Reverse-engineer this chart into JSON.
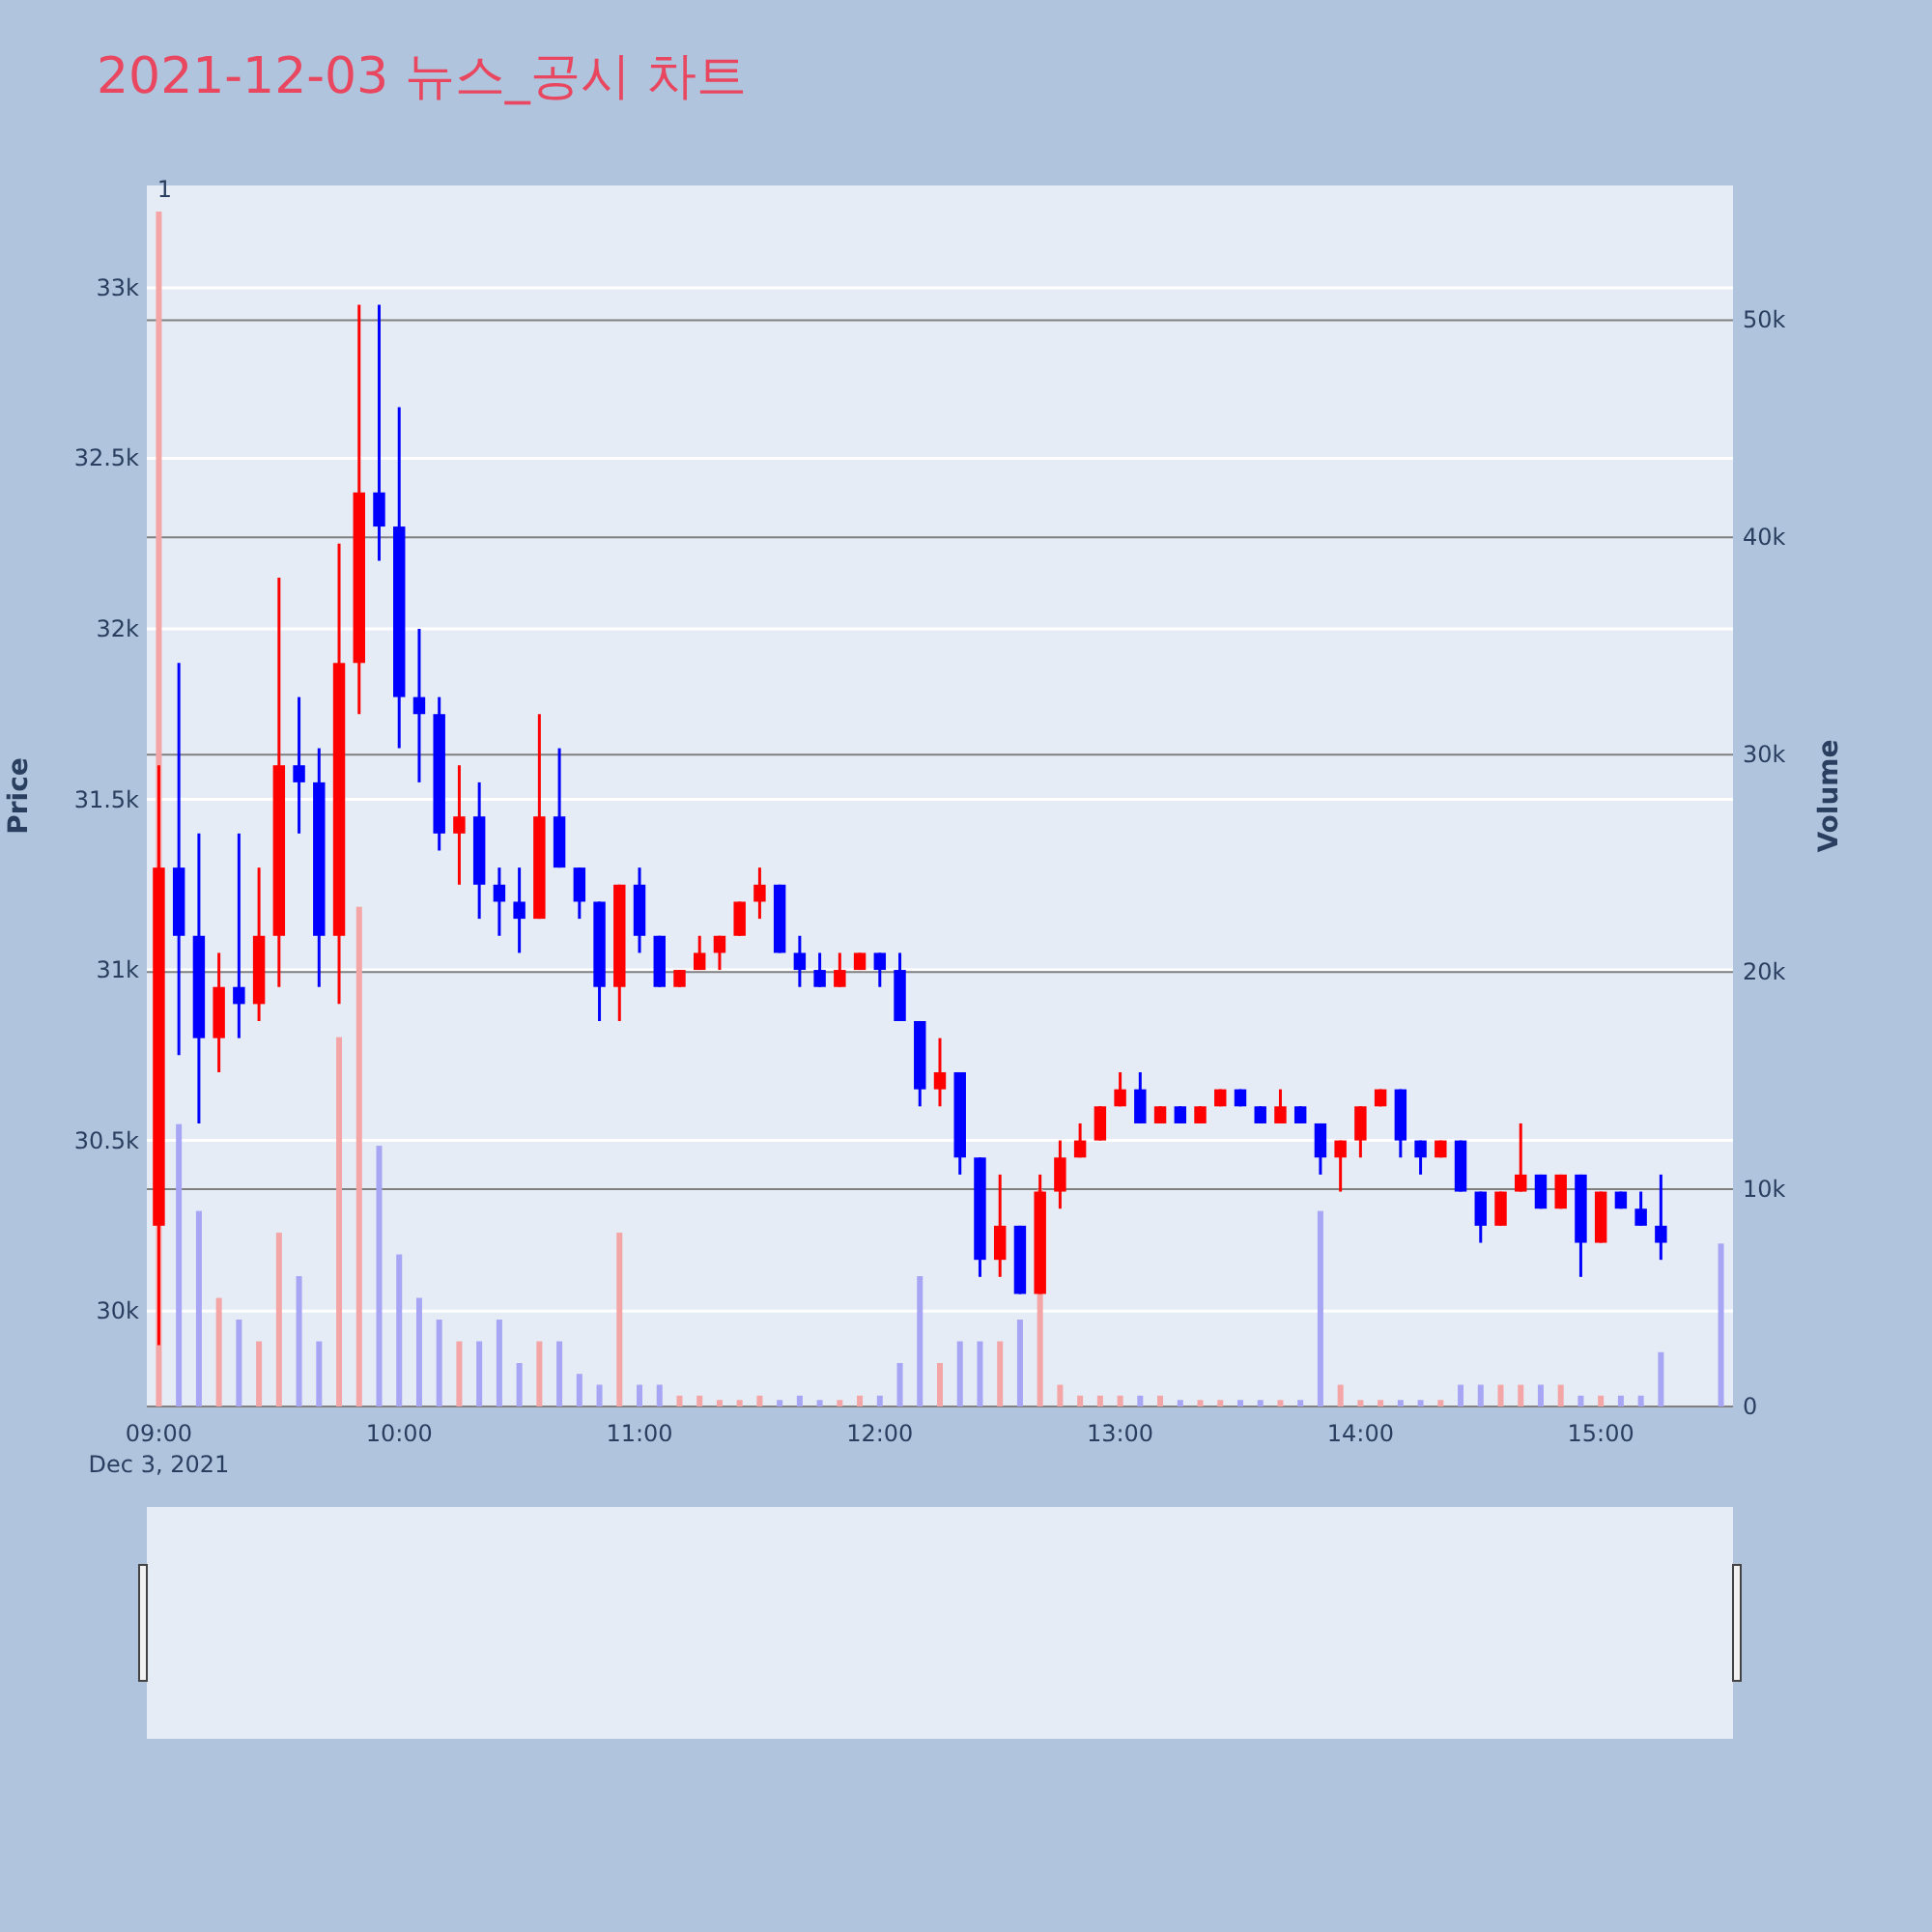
{
  "chart_data": {
    "type": "candlestick",
    "title": "2021-12-03 뉴스_공시 차트",
    "ylabel": "Price",
    "y2label": "Volume",
    "xlim": [
      "2021-12-03T08:57",
      "2021-12-03T15:33"
    ],
    "xticks": [
      {
        "value": "2021-12-03T09:00",
        "label": "09:00"
      },
      {
        "value": "2021-12-03T10:00",
        "label": "10:00"
      },
      {
        "value": "2021-12-03T11:00",
        "label": "11:00"
      },
      {
        "value": "2021-12-03T12:00",
        "label": "12:00"
      },
      {
        "value": "2021-12-03T13:00",
        "label": "13:00"
      },
      {
        "value": "2021-12-03T14:00",
        "label": "14:00"
      },
      {
        "value": "2021-12-03T15:00",
        "label": "15:00"
      }
    ],
    "ylim": [
      29720,
      33300
    ],
    "yticks": [
      {
        "value": 30000,
        "label": "30k"
      },
      {
        "value": 30500,
        "label": "30.5k"
      },
      {
        "value": 31000,
        "label": "31k"
      },
      {
        "value": 31500,
        "label": "31.5k"
      },
      {
        "value": 32000,
        "label": "32k"
      },
      {
        "value": 32500,
        "label": "32.5k"
      },
      {
        "value": 33000,
        "label": "33k"
      }
    ],
    "y2lim": [
      0,
      56200
    ],
    "y2ticks": [
      0,
      {
        "value": 10000,
        "label": "10k"
      },
      {
        "value": 20000,
        "label": "20k"
      },
      {
        "value": 30000,
        "label": "30k"
      },
      {
        "value": 40000,
        "label": "40k"
      },
      {
        "value": 50000,
        "label": "50k"
      }
    ],
    "grid": true,
    "annotations": [
      "1",
      "Dec 3, 2021"
    ],
    "series": [
      {
        "type": "bar",
        "axis": "y2",
        "x": [
          "2021-12-03T09:00",
          "2021-12-03T09:05",
          "2021-12-03T09:10",
          "2021-12-03T09:15",
          "2021-12-03T09:20",
          "2021-12-03T09:25",
          "2021-12-03T09:30",
          "2021-12-03T09:35",
          "2021-12-03T09:40",
          "2021-12-03T09:45",
          "2021-12-03T09:50",
          "2021-12-03T09:55",
          "2021-12-03T10:00",
          "2021-12-03T10:05",
          "2021-12-03T10:10",
          "2021-12-03T10:15",
          "2021-12-03T10:20",
          "2021-12-03T10:25",
          "2021-12-03T10:30",
          "2021-12-03T10:35",
          "2021-12-03T10:40",
          "2021-12-03T10:45",
          "2021-12-03T10:50",
          "2021-12-03T10:55",
          "2021-12-03T11:00",
          "2021-12-03T11:05",
          "2021-12-03T11:10",
          "2021-12-03T11:15",
          "2021-12-03T11:20",
          "2021-12-03T11:25",
          "2021-12-03T11:30",
          "2021-12-03T11:35",
          "2021-12-03T11:40",
          "2021-12-03T11:45",
          "2021-12-03T11:50",
          "2021-12-03T11:55",
          "2021-12-03T12:00",
          "2021-12-03T12:05",
          "2021-12-03T12:10",
          "2021-12-03T12:15",
          "2021-12-03T12:20",
          "2021-12-03T12:25",
          "2021-12-03T12:30",
          "2021-12-03T12:35",
          "2021-12-03T12:40",
          "2021-12-03T12:45",
          "2021-12-03T12:50",
          "2021-12-03T12:55",
          "2021-12-03T13:00",
          "2021-12-03T13:05",
          "2021-12-03T13:10",
          "2021-12-03T13:15",
          "2021-12-03T13:20",
          "2021-12-03T13:25",
          "2021-12-03T13:30",
          "2021-12-03T13:35",
          "2021-12-03T13:40",
          "2021-12-03T13:45",
          "2021-12-03T13:50",
          "2021-12-03T13:55",
          "2021-12-03T14:00",
          "2021-12-03T14:05",
          "2021-12-03T14:10",
          "2021-12-03T14:15",
          "2021-12-03T14:20",
          "2021-12-03T14:25",
          "2021-12-03T14:30",
          "2021-12-03T14:35",
          "2021-12-03T14:40",
          "2021-12-03T14:45",
          "2021-12-03T14:50",
          "2021-12-03T14:55",
          "2021-12-03T15:00",
          "2021-12-03T15:05",
          "2021-12-03T15:10",
          "2021-12-03T15:15",
          "2021-12-03T15:30"
        ],
        "values": [
          55000,
          13000,
          9000,
          5000,
          4000,
          3000,
          8000,
          6000,
          3000,
          17000,
          23000,
          12000,
          7000,
          5000,
          4000,
          3000,
          3000,
          4000,
          2000,
          3000,
          3000,
          1500,
          1000,
          8000,
          1000,
          1000,
          500,
          500,
          300,
          300,
          500,
          300,
          500,
          300,
          300,
          500,
          500,
          2000,
          6000,
          2000,
          3000,
          3000,
          3000,
          4000,
          10000,
          1000,
          500,
          500,
          500,
          500,
          500,
          300,
          300,
          300,
          300,
          300,
          300,
          300,
          9000,
          1000,
          300,
          300,
          300,
          300,
          300,
          1000,
          1000,
          1000,
          1000,
          1000,
          1000,
          500,
          500,
          500,
          500,
          2500,
          7500
        ],
        "colors": [
          "#f4a6a6",
          "#a6a6f4",
          "#a6a6f4",
          "#f4a6a6",
          "#a6a6f4",
          "#f4a6a6",
          "#f4a6a6",
          "#a6a6f4",
          "#a6a6f4",
          "#f4a6a6",
          "#f4a6a6",
          "#a6a6f4",
          "#a6a6f4",
          "#a6a6f4",
          "#a6a6f4",
          "#f4a6a6",
          "#a6a6f4",
          "#a6a6f4",
          "#a6a6f4",
          "#f4a6a6",
          "#a6a6f4",
          "#a6a6f4",
          "#a6a6f4",
          "#f4a6a6",
          "#a6a6f4",
          "#a6a6f4",
          "#f4a6a6",
          "#f4a6a6",
          "#f4a6a6",
          "#f4a6a6",
          "#f4a6a6",
          "#a6a6f4",
          "#a6a6f4",
          "#a6a6f4",
          "#f4a6a6",
          "#f4a6a6",
          "#a6a6f4",
          "#a6a6f4",
          "#a6a6f4",
          "#f4a6a6",
          "#a6a6f4",
          "#a6a6f4",
          "#f4a6a6",
          "#a6a6f4",
          "#f4a6a6",
          "#f4a6a6",
          "#f4a6a6",
          "#f4a6a6",
          "#f4a6a6",
          "#a6a6f4",
          "#f4a6a6",
          "#a6a6f4",
          "#f4a6a6",
          "#f4a6a6",
          "#a6a6f4",
          "#a6a6f4",
          "#f4a6a6",
          "#a6a6f4",
          "#a6a6f4",
          "#f4a6a6",
          "#f4a6a6",
          "#f4a6a6",
          "#a6a6f4",
          "#a6a6f4",
          "#f4a6a6",
          "#a6a6f4",
          "#a6a6f4",
          "#f4a6a6",
          "#f4a6a6",
          "#a6a6f4",
          "#f4a6a6",
          "#a6a6f4",
          "#f4a6a6",
          "#a6a6f4",
          "#a6a6f4",
          "#a6a6f4",
          "#a6a6f4"
        ]
      },
      {
        "x": [
          "2021-12-03T09:00",
          "2021-12-03T09:05",
          "2021-12-03T09:10",
          "2021-12-03T09:15",
          "2021-12-03T09:20",
          "2021-12-03T09:25",
          "2021-12-03T09:30",
          "2021-12-03T09:35",
          "2021-12-03T09:40",
          "2021-12-03T09:45",
          "2021-12-03T09:50",
          "2021-12-03T09:55",
          "2021-12-03T10:00",
          "2021-12-03T10:05",
          "2021-12-03T10:10",
          "2021-12-03T10:15",
          "2021-12-03T10:20",
          "2021-12-03T10:25",
          "2021-12-03T10:30",
          "2021-12-03T10:35",
          "2021-12-03T10:40",
          "2021-12-03T10:45",
          "2021-12-03T10:50",
          "2021-12-03T10:55",
          "2021-12-03T11:00",
          "2021-12-03T11:05",
          "2021-12-03T11:10",
          "2021-12-03T11:15",
          "2021-12-03T11:20",
          "2021-12-03T11:25",
          "2021-12-03T11:30",
          "2021-12-03T11:35",
          "2021-12-03T11:40",
          "2021-12-03T11:45",
          "2021-12-03T11:50",
          "2021-12-03T11:55",
          "2021-12-03T12:00",
          "2021-12-03T12:05",
          "2021-12-03T12:10",
          "2021-12-03T12:15",
          "2021-12-03T12:20",
          "2021-12-03T12:25",
          "2021-12-03T12:30",
          "2021-12-03T12:35",
          "2021-12-03T12:40",
          "2021-12-03T12:45",
          "2021-12-03T12:50",
          "2021-12-03T12:55",
          "2021-12-03T13:00",
          "2021-12-03T13:05",
          "2021-12-03T13:10",
          "2021-12-03T13:15",
          "2021-12-03T13:20",
          "2021-12-03T13:25",
          "2021-12-03T13:30",
          "2021-12-03T13:35",
          "2021-12-03T13:40",
          "2021-12-03T13:45",
          "2021-12-03T13:50",
          "2021-12-03T13:55",
          "2021-12-03T14:00",
          "2021-12-03T14:05",
          "2021-12-03T14:10",
          "2021-12-03T14:15",
          "2021-12-03T14:20",
          "2021-12-03T14:25",
          "2021-12-03T14:30",
          "2021-12-03T14:35",
          "2021-12-03T14:40",
          "2021-12-03T14:45",
          "2021-12-03T14:50",
          "2021-12-03T14:55",
          "2021-12-03T15:00",
          "2021-12-03T15:05",
          "2021-12-03T15:10",
          "2021-12-03T15:15"
        ],
        "ohlc": [
          [
            30250,
            31600,
            29900,
            31300
          ],
          [
            31300,
            31900,
            30750,
            31100
          ],
          [
            31100,
            31400,
            30550,
            30800
          ],
          [
            30800,
            31050,
            30700,
            30950
          ],
          [
            30950,
            31400,
            30800,
            30900
          ],
          [
            30900,
            31300,
            30850,
            31100
          ],
          [
            31100,
            32150,
            30950,
            31600
          ],
          [
            31600,
            31800,
            31400,
            31550
          ],
          [
            31550,
            31650,
            30950,
            31100
          ],
          [
            31100,
            32250,
            30900,
            31900
          ],
          [
            31900,
            32950,
            31750,
            32400
          ],
          [
            32400,
            32950,
            32200,
            32300
          ],
          [
            32300,
            32650,
            31650,
            31800
          ],
          [
            31800,
            32000,
            31550,
            31750
          ],
          [
            31750,
            31800,
            31350,
            31400
          ],
          [
            31400,
            31600,
            31250,
            31450
          ],
          [
            31450,
            31550,
            31150,
            31250
          ],
          [
            31250,
            31300,
            31100,
            31200
          ],
          [
            31200,
            31300,
            31050,
            31150
          ],
          [
            31150,
            31750,
            31150,
            31450
          ],
          [
            31450,
            31650,
            31300,
            31300
          ],
          [
            31300,
            31300,
            31150,
            31200
          ],
          [
            31200,
            31200,
            30850,
            30950
          ],
          [
            30950,
            31250,
            30850,
            31250
          ],
          [
            31250,
            31300,
            31050,
            31100
          ],
          [
            31100,
            31100,
            30950,
            30950
          ],
          [
            30950,
            31000,
            30950,
            31000
          ],
          [
            31000,
            31100,
            31000,
            31050
          ],
          [
            31050,
            31100,
            31000,
            31100
          ],
          [
            31100,
            31200,
            31100,
            31200
          ],
          [
            31200,
            31300,
            31150,
            31250
          ],
          [
            31250,
            31250,
            31050,
            31050
          ],
          [
            31050,
            31100,
            30950,
            31000
          ],
          [
            31000,
            31050,
            30950,
            30950
          ],
          [
            30950,
            31050,
            30950,
            31000
          ],
          [
            31000,
            31050,
            31000,
            31050
          ],
          [
            31050,
            31050,
            30950,
            31000
          ],
          [
            31000,
            31050,
            30850,
            30850
          ],
          [
            30850,
            30850,
            30600,
            30650
          ],
          [
            30650,
            30800,
            30600,
            30700
          ],
          [
            30700,
            30700,
            30400,
            30450
          ],
          [
            30450,
            30450,
            30100,
            30150
          ],
          [
            30150,
            30400,
            30100,
            30250
          ],
          [
            30250,
            30250,
            30050,
            30050
          ],
          [
            30050,
            30400,
            30050,
            30350
          ],
          [
            30350,
            30500,
            30300,
            30450
          ],
          [
            30450,
            30550,
            30450,
            30500
          ],
          [
            30500,
            30600,
            30500,
            30600
          ],
          [
            30600,
            30700,
            30600,
            30650
          ],
          [
            30650,
            30700,
            30550,
            30550
          ],
          [
            30550,
            30600,
            30550,
            30600
          ],
          [
            30600,
            30600,
            30550,
            30550
          ],
          [
            30550,
            30600,
            30550,
            30600
          ],
          [
            30600,
            30650,
            30600,
            30650
          ],
          [
            30650,
            30650,
            30600,
            30600
          ],
          [
            30600,
            30600,
            30550,
            30550
          ],
          [
            30550,
            30650,
            30550,
            30600
          ],
          [
            30600,
            30600,
            30550,
            30550
          ],
          [
            30550,
            30550,
            30400,
            30450
          ],
          [
            30450,
            30500,
            30350,
            30500
          ],
          [
            30500,
            30600,
            30450,
            30600
          ],
          [
            30600,
            30650,
            30600,
            30650
          ],
          [
            30650,
            30650,
            30450,
            30500
          ],
          [
            30500,
            30500,
            30400,
            30450
          ],
          [
            30450,
            30500,
            30450,
            30500
          ],
          [
            30500,
            30500,
            30350,
            30350
          ],
          [
            30350,
            30350,
            30200,
            30250
          ],
          [
            30250,
            30350,
            30250,
            30350
          ],
          [
            30350,
            30550,
            30350,
            30400
          ],
          [
            30400,
            30400,
            30300,
            30300
          ],
          [
            30300,
            30400,
            30300,
            30400
          ],
          [
            30400,
            30400,
            30100,
            30200
          ],
          [
            30200,
            30350,
            30200,
            30350
          ],
          [
            30350,
            30350,
            30300,
            30300
          ],
          [
            30300,
            30350,
            30250,
            30250
          ],
          [
            30250,
            30400,
            30150,
            30200
          ]
        ],
        "colors": [
          "#ff0000",
          "#0000ff",
          "#0000ff",
          "#ff0000",
          "#0000ff",
          "#ff0000",
          "#ff0000",
          "#0000ff",
          "#0000ff",
          "#ff0000",
          "#ff0000",
          "#0000ff",
          "#0000ff",
          "#0000ff",
          "#0000ff",
          "#ff0000",
          "#0000ff",
          "#0000ff",
          "#0000ff",
          "#ff0000",
          "#0000ff",
          "#0000ff",
          "#0000ff",
          "#ff0000",
          "#0000ff",
          "#0000ff",
          "#ff0000",
          "#ff0000",
          "#ff0000",
          "#ff0000",
          "#ff0000",
          "#0000ff",
          "#0000ff",
          "#0000ff",
          "#ff0000",
          "#ff0000",
          "#0000ff",
          "#0000ff",
          "#0000ff",
          "#ff0000",
          "#0000ff",
          "#0000ff",
          "#ff0000",
          "#0000ff",
          "#ff0000",
          "#ff0000",
          "#ff0000",
          "#ff0000",
          "#ff0000",
          "#0000ff",
          "#ff0000",
          "#0000ff",
          "#ff0000",
          "#ff0000",
          "#0000ff",
          "#0000ff",
          "#ff0000",
          "#0000ff",
          "#0000ff",
          "#ff0000",
          "#ff0000",
          "#ff0000",
          "#0000ff",
          "#0000ff",
          "#ff0000",
          "#0000ff",
          "#0000ff",
          "#ff0000",
          "#ff0000",
          "#0000ff",
          "#ff0000",
          "#0000ff",
          "#ff0000",
          "#0000ff",
          "#0000ff",
          "#0000ff"
        ]
      }
    ]
  }
}
